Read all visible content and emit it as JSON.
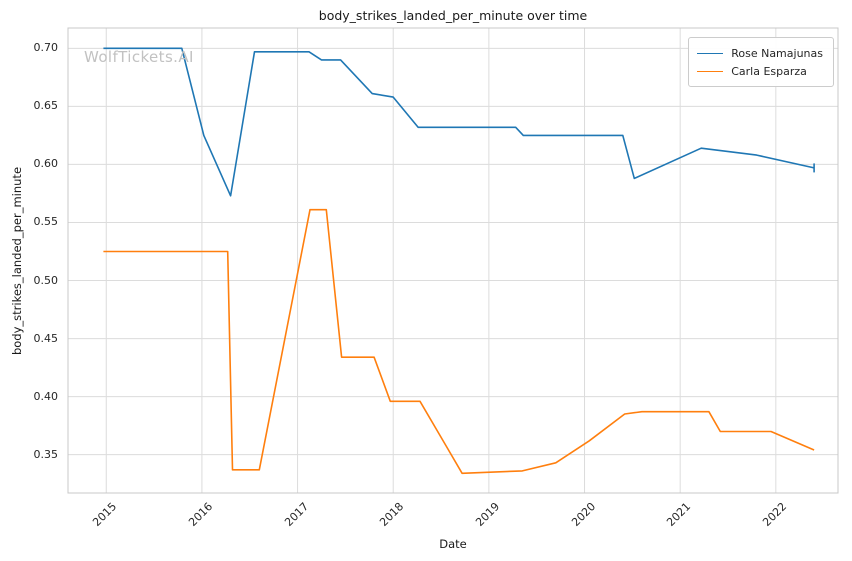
{
  "watermark": "WolfTickets.AI",
  "chart_data": {
    "type": "line",
    "title": "body_strikes_landed_per_minute over time",
    "xlabel": "Date",
    "ylabel": "body_strikes_landed_per_minute",
    "xlim": [
      2014.6,
      2022.65
    ],
    "ylim": [
      0.317,
      0.7175
    ],
    "x_ticks": [
      2015,
      2016,
      2017,
      2018,
      2019,
      2020,
      2021,
      2022
    ],
    "y_ticks": [
      0.35,
      0.4,
      0.45,
      0.5,
      0.55,
      0.6,
      0.65,
      0.7
    ],
    "grid": true,
    "legend_position": "upper right",
    "series": [
      {
        "name": "Rose Namajunas",
        "color": "#1f77b4",
        "end_tick": true,
        "points": [
          [
            2014.97,
            0.7
          ],
          [
            2015.79,
            0.7
          ],
          [
            2016.02,
            0.625
          ],
          [
            2016.3,
            0.573
          ],
          [
            2016.55,
            0.697
          ],
          [
            2017.12,
            0.697
          ],
          [
            2017.25,
            0.69
          ],
          [
            2017.45,
            0.69
          ],
          [
            2017.78,
            0.661
          ],
          [
            2018.0,
            0.658
          ],
          [
            2018.26,
            0.632
          ],
          [
            2019.28,
            0.632
          ],
          [
            2019.36,
            0.625
          ],
          [
            2020.4,
            0.625
          ],
          [
            2020.52,
            0.588
          ],
          [
            2021.22,
            0.614
          ],
          [
            2021.8,
            0.608
          ],
          [
            2022.4,
            0.597
          ]
        ]
      },
      {
        "name": "Carla Esparza",
        "color": "#ff7f0e",
        "end_tick": false,
        "points": [
          [
            2014.97,
            0.525
          ],
          [
            2016.27,
            0.525
          ],
          [
            2016.32,
            0.337
          ],
          [
            2016.6,
            0.337
          ],
          [
            2017.13,
            0.561
          ],
          [
            2017.3,
            0.561
          ],
          [
            2017.46,
            0.434
          ],
          [
            2017.8,
            0.434
          ],
          [
            2017.97,
            0.396
          ],
          [
            2018.28,
            0.396
          ],
          [
            2018.55,
            0.358
          ],
          [
            2018.72,
            0.334
          ],
          [
            2019.35,
            0.336
          ],
          [
            2019.7,
            0.343
          ],
          [
            2020.05,
            0.362
          ],
          [
            2020.42,
            0.385
          ],
          [
            2020.6,
            0.387
          ],
          [
            2021.3,
            0.387
          ],
          [
            2021.42,
            0.37
          ],
          [
            2021.95,
            0.37
          ],
          [
            2022.4,
            0.354
          ]
        ]
      }
    ]
  }
}
